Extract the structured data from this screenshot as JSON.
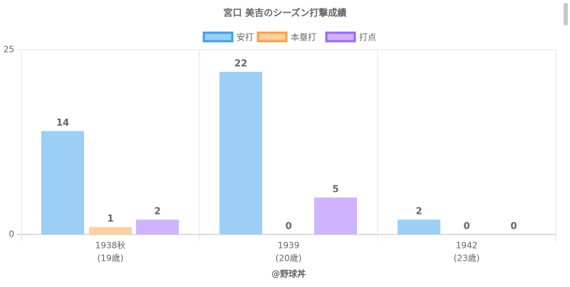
{
  "chart_data": {
    "type": "bar",
    "title": "宮口 美吉のシーズン打撃成績",
    "categories": [
      "1938秋",
      "1939",
      "1942"
    ],
    "category_sublabels": [
      "(19歳)",
      "(20歳)",
      "(23歳)"
    ],
    "xlabel": "@野球丼",
    "series": [
      {
        "name": "安打",
        "color": "#9ccff5",
        "border": "#36a2eb",
        "values": [
          14,
          22,
          2
        ]
      },
      {
        "name": "本塁打",
        "color": "#ffcf9f",
        "border": "#ff9f40",
        "values": [
          1,
          0,
          0
        ]
      },
      {
        "name": "打点",
        "color": "#cfb3ff",
        "border": "#9966ff",
        "values": [
          2,
          5,
          0
        ]
      }
    ],
    "ylim": [
      0,
      25
    ],
    "yticks": [
      0,
      25
    ],
    "grid": true,
    "legend": "top"
  }
}
